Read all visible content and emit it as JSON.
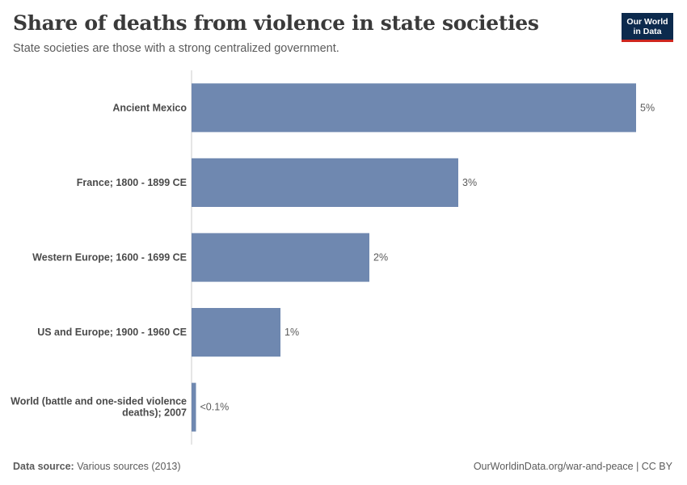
{
  "header": {
    "title": "Share of deaths from violence in state societies",
    "subtitle": "State societies are those with a strong centralized government."
  },
  "logo": {
    "line1": "Our World",
    "line2": "in Data"
  },
  "footer": {
    "source_label": "Data source:",
    "source_text": "Various sources (2013)",
    "credit": "OurWorldinData.org/war-and-peace | CC BY"
  },
  "colors": {
    "bar": "#6f88b0",
    "axis": "#cccccc"
  },
  "chart_data": {
    "type": "bar",
    "orientation": "horizontal",
    "categories": [
      [
        "Ancient Mexico"
      ],
      [
        "France; 1800 - 1899 CE"
      ],
      [
        "Western Europe; 1600 - 1699 CE"
      ],
      [
        "US and Europe; 1900 - 1960 CE"
      ],
      [
        "World (battle and one-sided violence",
        "deaths); 2007"
      ]
    ],
    "values": [
      5.0,
      3.0,
      2.0,
      1.0,
      0.05
    ],
    "value_labels": [
      "5%",
      "3%",
      "2%",
      "1%",
      "<0.1%"
    ],
    "xlim": [
      0,
      5
    ]
  }
}
